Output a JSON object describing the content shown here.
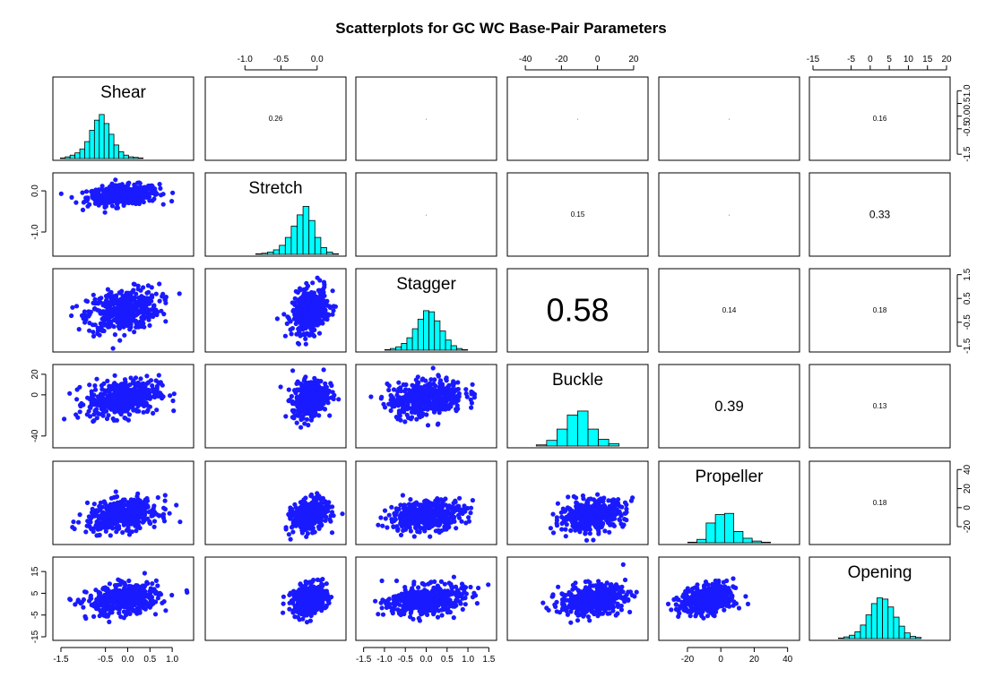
{
  "chart_data": {
    "type": "scatter",
    "title": "Scatterplots for GC WC Base-Pair Parameters",
    "variables": [
      {
        "name": "Shear",
        "range": [
          -1.6,
          1.4
        ],
        "ticks": [
          -1.5,
          -0.5,
          0.0,
          0.5,
          1.0
        ],
        "tick_labels": [
          "-1.5",
          "-0.5",
          "0.0",
          "0.5",
          "1.0"
        ],
        "mean": -0.1,
        "sd": 0.4,
        "hist": [
          0.01,
          0.03,
          0.06,
          0.1,
          0.17,
          0.3,
          0.5,
          0.68,
          0.78,
          0.62,
          0.43,
          0.24,
          0.12,
          0.06,
          0.03,
          0.02,
          0.01
        ]
      },
      {
        "name": "Stretch",
        "range": [
          -1.5,
          0.35
        ],
        "ticks": [
          -1.0,
          0.0
        ],
        "tick_labels": [
          "-1.0",
          "0.0"
        ],
        "top_ticks": [
          -1.0,
          -0.5,
          0.0
        ],
        "top_tick_labels": [
          "-1.0",
          "-0.5",
          "0.0"
        ],
        "mean": -0.1,
        "sd": 0.12,
        "hist": [
          0.01,
          0.02,
          0.04,
          0.08,
          0.16,
          0.3,
          0.5,
          0.7,
          0.85,
          0.6,
          0.3,
          0.12,
          0.04,
          0.01
        ]
      },
      {
        "name": "Stagger",
        "range": [
          -1.6,
          1.6
        ],
        "ticks": [
          -1.5,
          -0.5,
          0.5,
          1.5
        ],
        "tick_labels": [
          "-1.5",
          "-0.5",
          "0.5",
          "1.5"
        ],
        "minor_ticks": [
          -1.0,
          0.0,
          1.0
        ],
        "minor_tick_labels": [
          "-1.0",
          "0.0",
          "1.0"
        ],
        "mean": 0.0,
        "sd": 0.45,
        "hist": [
          0.01,
          0.03,
          0.06,
          0.12,
          0.22,
          0.38,
          0.55,
          0.7,
          0.68,
          0.52,
          0.34,
          0.18,
          0.08,
          0.03,
          0.01
        ]
      },
      {
        "name": "Buckle",
        "range": [
          -48,
          26
        ],
        "ticks": [
          -40,
          0,
          20
        ],
        "tick_labels": [
          "-40",
          "0",
          "20"
        ],
        "top_ticks": [
          -40,
          -20,
          0,
          20
        ],
        "top_tick_labels": [
          "-40",
          "-20",
          "0",
          "20"
        ],
        "mean": -3,
        "sd": 9,
        "hist": [
          0.02,
          0.1,
          0.3,
          0.55,
          0.62,
          0.3,
          0.12,
          0.04
        ]
      },
      {
        "name": "Propeller",
        "range": [
          -35,
          45
        ],
        "ticks": [
          -20,
          0,
          20,
          40
        ],
        "tick_labels": [
          "-20",
          "0",
          "20",
          "40"
        ],
        "right_ticks": [
          -20,
          0,
          20,
          40
        ],
        "right_tick_labels": [
          "-20",
          "0",
          "20",
          "40"
        ],
        "mean": -8,
        "sd": 8,
        "hist": [
          0.01,
          0.06,
          0.35,
          0.5,
          0.52,
          0.2,
          0.08,
          0.03,
          0.01
        ]
      },
      {
        "name": "Opening",
        "range": [
          -15,
          20
        ],
        "ticks": [
          -15,
          -5,
          5,
          15
        ],
        "tick_labels": [
          "-15",
          "-5",
          "5",
          "15"
        ],
        "top_ticks": [
          -15,
          -5,
          0,
          5,
          10,
          15,
          20
        ],
        "top_tick_labels": [
          "-15",
          "-5",
          "0",
          "5",
          "10",
          "15",
          "20"
        ],
        "mean": 2,
        "sd": 3.5,
        "hist": [
          0.01,
          0.03,
          0.06,
          0.12,
          0.24,
          0.42,
          0.62,
          0.72,
          0.7,
          0.56,
          0.38,
          0.22,
          0.1,
          0.04,
          0.02
        ]
      }
    ],
    "correlations": [
      {
        "row": 1,
        "col": 2,
        "label": "0.26"
      },
      {
        "row": 1,
        "col": 3,
        "label": "·"
      },
      {
        "row": 1,
        "col": 4,
        "label": "·"
      },
      {
        "row": 1,
        "col": 5,
        "label": "·"
      },
      {
        "row": 1,
        "col": 6,
        "label": "0.16"
      },
      {
        "row": 2,
        "col": 3,
        "label": "·"
      },
      {
        "row": 2,
        "col": 4,
        "label": "0.15"
      },
      {
        "row": 2,
        "col": 5,
        "label": "·"
      },
      {
        "row": 2,
        "col": 6,
        "label": "0.33"
      },
      {
        "row": 3,
        "col": 4,
        "label": "0.58"
      },
      {
        "row": 3,
        "col": 5,
        "label": "0.14"
      },
      {
        "row": 3,
        "col": 6,
        "label": "0.18"
      },
      {
        "row": 4,
        "col": 5,
        "label": "0.39"
      },
      {
        "row": 4,
        "col": 6,
        "label": "0.13"
      },
      {
        "row": 5,
        "col": 6,
        "label": "0.18"
      }
    ],
    "point_color": "#1a1aff",
    "hist_color": "#00ffff",
    "points_per_panel": 450
  }
}
